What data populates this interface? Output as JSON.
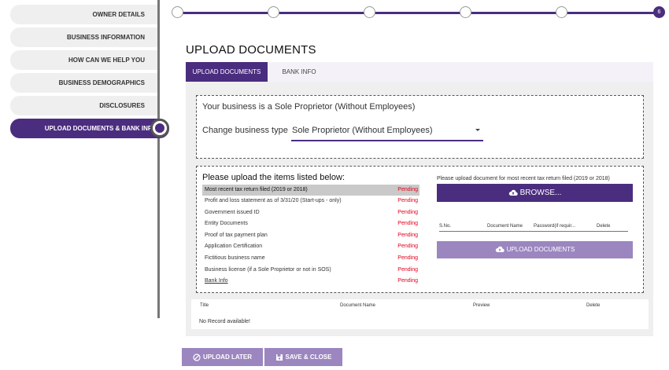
{
  "sidebar": {
    "items": [
      {
        "label": "OWNER DETAILS"
      },
      {
        "label": "BUSINESS INFORMATION"
      },
      {
        "label": "HOW CAN WE HELP YOU"
      },
      {
        "label": "BUSINESS DEMOGRAPHICS"
      },
      {
        "label": "DISCLOSURES"
      },
      {
        "label": "UPLOAD DOCUMENTS & BANK INFO"
      }
    ]
  },
  "stepper": {
    "current_label": "6"
  },
  "page_title": "UPLOAD DOCUMENTS",
  "tabs": [
    {
      "label": "UPLOAD DOCUMENTS"
    },
    {
      "label": "BANK INFO"
    }
  ],
  "business": {
    "title": "Your business is a Sole Proprietor (Without Employees)",
    "change_label": "Change business type",
    "selected": "Sole Proprietor (Without Employees)"
  },
  "documents": {
    "heading": "Please upload the items listed below:",
    "items": [
      {
        "name": "Most recent tax return filed (2019 or 2018)",
        "status": "Pending"
      },
      {
        "name": "Profit and loss statement as of 3/31/20 (Start-ups - only)",
        "status": "Pending"
      },
      {
        "name": "Government issued ID",
        "status": "Pending"
      },
      {
        "name": "Entity Documents",
        "status": "Pending"
      },
      {
        "name": "Proof of tax payment plan",
        "status": "Pending"
      },
      {
        "name": "Application Certification",
        "status": "Pending"
      },
      {
        "name": "Fictitious business name",
        "status": "Pending"
      },
      {
        "name": "Business license (if a Sole Proprietor or not in SOS)",
        "status": "Pending"
      },
      {
        "name": "Bank Info",
        "status": "Pending"
      }
    ],
    "note": "Please upload document for most recent tax return filed (2019 or 2018)",
    "browse_label": "BROWSE...",
    "upload_table_headers": [
      "S.No.",
      "Document Name",
      "Password(if requir...",
      "Delete"
    ],
    "upload_label": "UPLOAD DOCUMENTS"
  },
  "records": {
    "headers": [
      "Title",
      "Document Name",
      "Preview",
      "Delete"
    ],
    "empty": "No Record available!"
  },
  "actions": {
    "later_label": "UPLOAD LATER",
    "save_label": "SAVE & CLOSE"
  },
  "colors": {
    "accent": "#4b2d7f",
    "accent_light": "#9b86c0",
    "pending": "#e0001a"
  }
}
